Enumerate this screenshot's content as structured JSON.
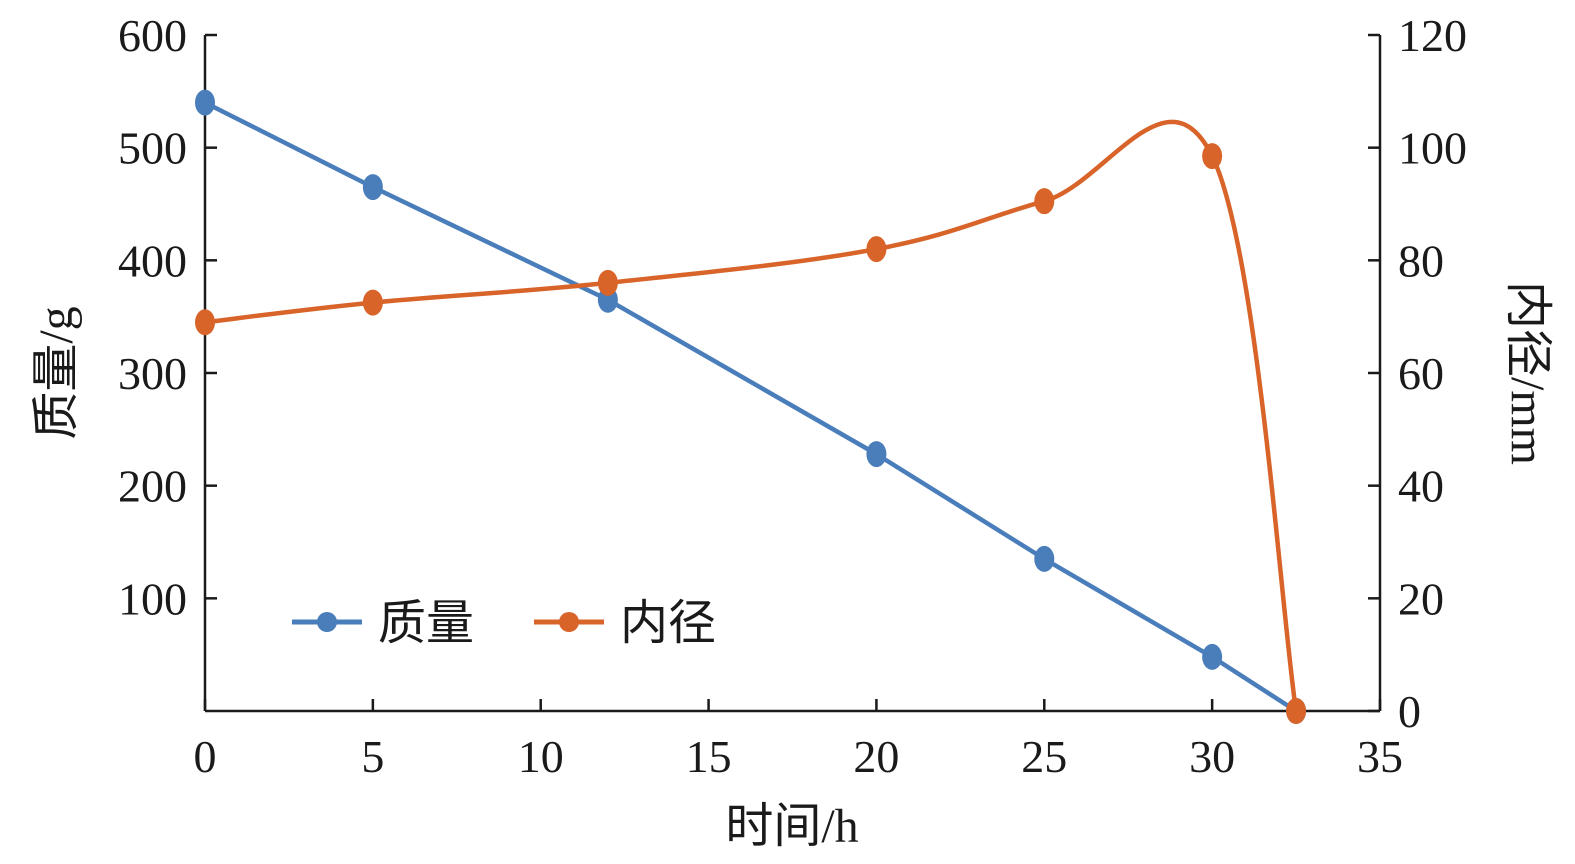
{
  "chart_data": {
    "type": "line",
    "xlabel": "时间/h",
    "ylabel_left": "质量/g",
    "ylabel_right": "内径/mm",
    "xlim": [
      0,
      35
    ],
    "ylim_left": [
      0,
      600
    ],
    "ylim_right": [
      0,
      120
    ],
    "x_ticks": [
      "0",
      "5",
      "10",
      "15",
      "20",
      "25",
      "30",
      "35"
    ],
    "y_left_ticks": [
      "100",
      "200",
      "300",
      "400",
      "500",
      "600"
    ],
    "y_right_ticks": [
      "0",
      "20",
      "40",
      "60",
      "80",
      "100",
      "120"
    ],
    "grid": false,
    "legend_position": "bottom-left",
    "series": [
      {
        "name": "质量",
        "axis": "left",
        "color": "#4a7ebb",
        "smooth": false,
        "x": [
          0,
          5,
          12,
          20,
          25,
          30,
          32.5
        ],
        "values": [
          540,
          465,
          365,
          228,
          135,
          48,
          0
        ]
      },
      {
        "name": "内径",
        "axis": "right",
        "color": "#d8642a",
        "smooth": true,
        "x": [
          0,
          5,
          12,
          20,
          25,
          30,
          32.5
        ],
        "values": [
          69,
          72.5,
          76,
          82,
          90.5,
          98.5,
          0
        ]
      }
    ]
  }
}
